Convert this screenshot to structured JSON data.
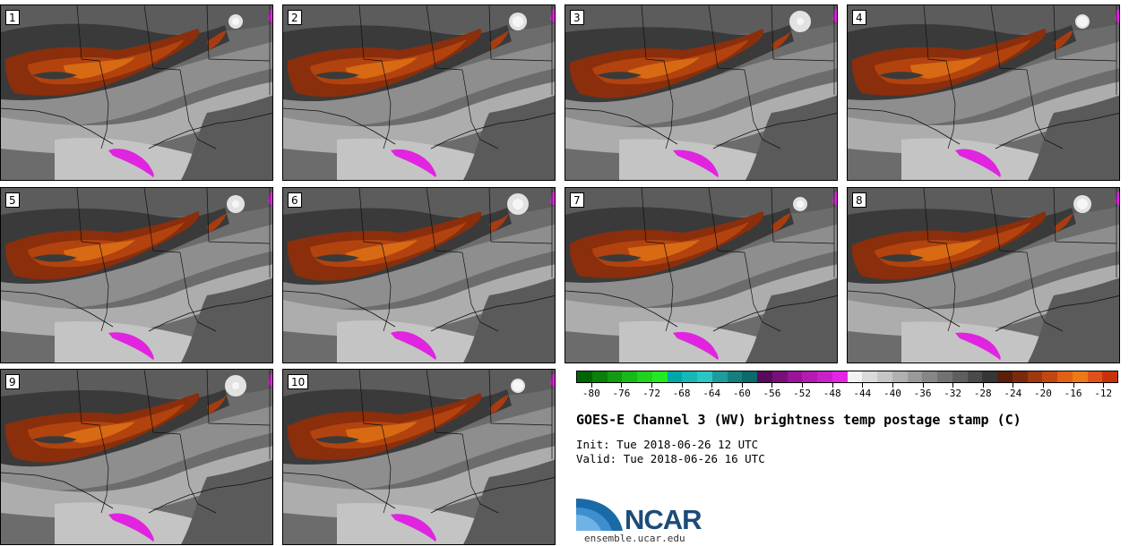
{
  "figure": {
    "title": "GOES-E Channel 3 (WV) brightness temp postage stamp (C)",
    "init_label": "Init:",
    "init_value": "Tue 2018-06-26 12 UTC",
    "valid_label": "Valid:",
    "valid_value": "Tue 2018-06-26 16 UTC",
    "logo_text": "NCAR",
    "website": "ensemble.ucar.edu"
  },
  "panels": [
    {
      "label": "1"
    },
    {
      "label": "2"
    },
    {
      "label": "3"
    },
    {
      "label": "4"
    },
    {
      "label": "5"
    },
    {
      "label": "6"
    },
    {
      "label": "7"
    },
    {
      "label": "8"
    },
    {
      "label": "9"
    },
    {
      "label": "10"
    }
  ],
  "colorbar": {
    "tick_labels": [
      "-80",
      "-76",
      "-72",
      "-68",
      "-64",
      "-60",
      "-56",
      "-52",
      "-48",
      "-44",
      "-40",
      "-36",
      "-32",
      "-28",
      "-24",
      "-20",
      "-16",
      "-12"
    ],
    "colors": [
      "#006400",
      "#0b7f0b",
      "#129a12",
      "#18b818",
      "#1ed21e",
      "#22ea22",
      "#00a7a7",
      "#16b7b7",
      "#2ac6c6",
      "#1e9b9b",
      "#157f7f",
      "#0b6a6a",
      "#5a0a5a",
      "#7a0f7a",
      "#9a149a",
      "#b41ab4",
      "#cc1fcc",
      "#e624e6",
      "#f2f2f2",
      "#dadada",
      "#c6c6c6",
      "#b0b0b0",
      "#9a9a9a",
      "#868686",
      "#727272",
      "#5e5e5e",
      "#4a4a4a",
      "#363636",
      "#5a1e0a",
      "#7a2a0c",
      "#9e380e",
      "#c04810",
      "#e06014",
      "#ee7818",
      "#e0501a",
      "#c8320a"
    ]
  }
}
